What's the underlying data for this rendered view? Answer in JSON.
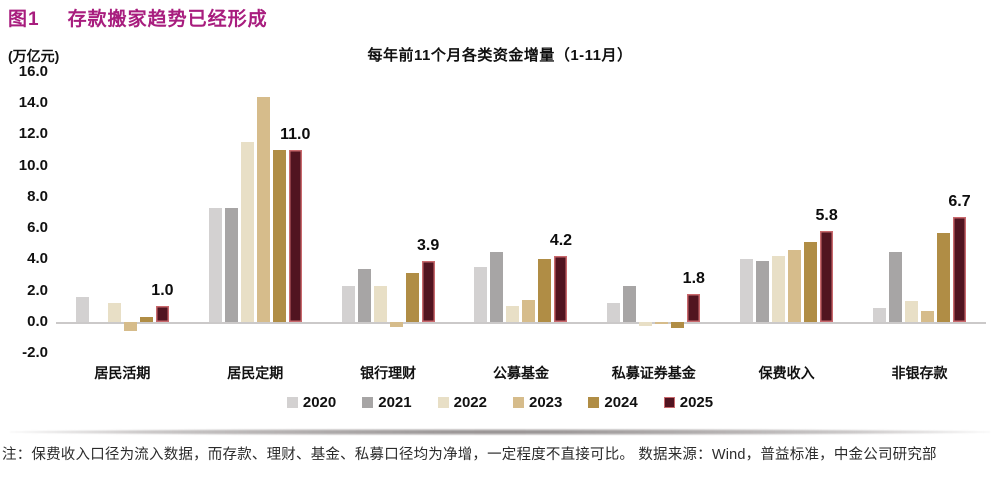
{
  "figure": {
    "number": "图1",
    "title": "存款搬家趋势已经形成",
    "title_color": "#a81d7e"
  },
  "chart_data": {
    "type": "bar",
    "title": "每年前11个月各类资金增量（1-11月）",
    "unit_label": "(万亿元)",
    "categories": [
      "居民活期",
      "居民定期",
      "银行理财",
      "公募基金",
      "私募证券基金",
      "保费收入",
      "非银存款"
    ],
    "series": [
      {
        "name": "2020",
        "color": "#d3d1d1",
        "values": [
          1.6,
          7.3,
          2.3,
          3.5,
          1.2,
          4.0,
          0.9
        ]
      },
      {
        "name": "2021",
        "color": "#a7a5a5",
        "values": [
          0.0,
          7.3,
          3.4,
          4.5,
          2.3,
          3.9,
          4.5
        ]
      },
      {
        "name": "2022",
        "color": "#e8dfc6",
        "values": [
          1.2,
          11.5,
          2.3,
          1.0,
          -0.3,
          4.2,
          1.3
        ]
      },
      {
        "name": "2023",
        "color": "#d6bc8b",
        "values": [
          -0.6,
          14.4,
          -0.35,
          1.4,
          -0.15,
          4.6,
          0.7
        ]
      },
      {
        "name": "2024",
        "color": "#b08d45",
        "values": [
          0.3,
          11.0,
          3.1,
          4.0,
          -0.4,
          5.1,
          5.7
        ]
      },
      {
        "name": "2025",
        "color": "#511420",
        "border_color": "#c9696d",
        "values": [
          1.0,
          11.0,
          3.9,
          4.2,
          1.8,
          5.8,
          6.7
        ]
      }
    ],
    "labeled_series": "2025",
    "value_labels": [
      "1.0",
      "11.0",
      "3.9",
      "4.2",
      "1.8",
      "5.8",
      "6.7"
    ],
    "ylim": [
      -2,
      16
    ],
    "yticks": [
      "16.0",
      "14.0",
      "12.0",
      "10.0",
      "8.0",
      "6.0",
      "4.0",
      "2.0",
      "0.0",
      "-2.0"
    ],
    "grid": false,
    "legend_position": "bottom"
  },
  "footnote": "注：保费收入口径为流入数据，而存款、理财、基金、私募口径均为净增，一定程度不直接可比。 数据来源：Wind，普益标准，中金公司研究部"
}
